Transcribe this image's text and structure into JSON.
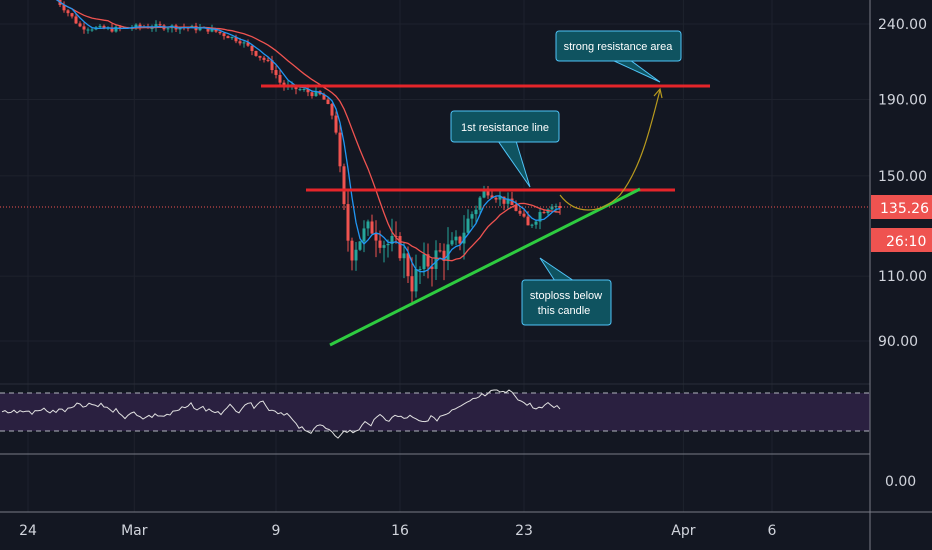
{
  "chart_data": {
    "type": "candlestick",
    "price_axis": {
      "ticks": [
        {
          "value": 240,
          "label": "240.00"
        },
        {
          "value": 190,
          "label": "190.00"
        },
        {
          "value": 150,
          "label": "150.00"
        },
        {
          "value": 110,
          "label": "110.00"
        },
        {
          "value": 90,
          "label": "90.00"
        }
      ],
      "scale": "log"
    },
    "current_price": {
      "value": 135.26,
      "label": "135.26",
      "countdown": "26:10",
      "color": "#ef5350"
    },
    "date_axis": {
      "ticks": [
        {
          "value": "2020-02-24",
          "label": "24"
        },
        {
          "value": "2020-03-01",
          "label": "Mar"
        },
        {
          "value": "2020-03-09",
          "label": "9"
        },
        {
          "value": "2020-03-16",
          "label": "16"
        },
        {
          "value": "2020-03-23",
          "label": "23"
        },
        {
          "value": "2020-04-01",
          "label": "Apr"
        },
        {
          "value": "2020-04-06",
          "label": "6"
        }
      ]
    },
    "oscillator": {
      "ticks": [
        {
          "value": 0,
          "label": "0.00"
        }
      ]
    },
    "drawings": {
      "strong_resistance": {
        "value": 199,
        "color": "#e5252a"
      },
      "first_resistance": {
        "value": 143,
        "color": "#e5252a"
      },
      "support_trendline": {
        "start": {
          "date": "2020-03-13",
          "price": 88
        },
        "end": {
          "date": "2020-03-31",
          "price": 140
        },
        "color": "#2ecc40"
      }
    },
    "annotations": [
      {
        "text": "strong resistance area"
      },
      {
        "text": "1st resistance line"
      },
      {
        "lines": [
          "stoploss below",
          "this candle"
        ]
      }
    ],
    "colors": {
      "up": "#26a69a",
      "down": "#ef5350",
      "ma_fast": "#2196f3",
      "ma_slow": "#ef5350",
      "callout": "#0f5360"
    }
  }
}
